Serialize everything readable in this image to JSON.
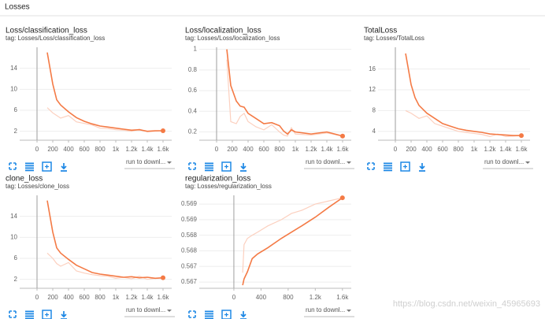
{
  "header": "Losses",
  "dropdown": "run to downl...",
  "watermark": "https://blog.csdn.net/weixin_45965693",
  "chart_data": [
    {
      "type": "line",
      "title": "Loss/classification_loss",
      "subtitle": "tag: Losses/Loss/classification_loss",
      "x": [
        130,
        200,
        250,
        300,
        400,
        500,
        600,
        700,
        800,
        900,
        1000,
        1100,
        1200,
        1300,
        1400,
        1500,
        1600
      ],
      "series": [
        {
          "color": "#fcd0bf",
          "values": [
            6.5,
            5.5,
            5,
            4.5,
            5,
            3.8,
            3.5,
            3.2,
            2.6,
            2.5,
            2.3,
            2.2,
            2.0,
            2.4,
            1.9,
            2.0,
            2.1
          ]
        },
        {
          "color": "#f47a45",
          "values": [
            17,
            11,
            8,
            7,
            5.7,
            4.6,
            3.9,
            3.4,
            3.0,
            2.8,
            2.6,
            2.4,
            2.2,
            2.3,
            2.0,
            2.1,
            2.1
          ]
        }
      ],
      "xlim": [
        -220,
        1710
      ],
      "ylim": [
        0.3,
        18
      ],
      "xticks": [
        0,
        200,
        400,
        600,
        800,
        {
          "value": 1000,
          "label": "1k"
        },
        {
          "value": 1200,
          "label": "1.2k"
        },
        {
          "value": 1400,
          "label": "1.4k"
        },
        {
          "value": 1600,
          "label": "1.6k"
        }
      ],
      "yticks": [
        2,
        6,
        10,
        14
      ],
      "grid": true
    },
    {
      "type": "line",
      "title": "Loss/localization_loss",
      "subtitle": "tag: Losses/Loss/localization_loss",
      "x": [
        130,
        180,
        250,
        300,
        350,
        400,
        500,
        600,
        700,
        800,
        850,
        900,
        950,
        1000,
        1200,
        1400,
        1600
      ],
      "series": [
        {
          "color": "#fcd0bf",
          "values": [
            0.9,
            0.3,
            0.28,
            0.35,
            0.38,
            0.3,
            0.25,
            0.22,
            0.27,
            0.2,
            0.17,
            0.16,
            0.24,
            0.18,
            0.17,
            0.19,
            0.16
          ]
        },
        {
          "color": "#f47a45",
          "values": [
            1.0,
            0.65,
            0.5,
            0.45,
            0.44,
            0.38,
            0.33,
            0.28,
            0.29,
            0.26,
            0.21,
            0.18,
            0.22,
            0.2,
            0.18,
            0.2,
            0.16
          ]
        }
      ],
      "xlim": [
        -220,
        1710
      ],
      "ylim": [
        0.12,
        1.02
      ],
      "xticks": [
        0,
        200,
        400,
        600,
        800,
        {
          "value": 1000,
          "label": "1k"
        },
        {
          "value": 1200,
          "label": "1.2k"
        },
        {
          "value": 1400,
          "label": "1.4k"
        },
        {
          "value": 1600,
          "label": "1.6k"
        }
      ],
      "yticks": [
        0.2,
        0.4,
        0.6,
        0.8,
        1
      ],
      "grid": true
    },
    {
      "type": "line",
      "title": "TotalLoss",
      "subtitle": "tag: Losses/TotalLoss",
      "x": [
        130,
        200,
        250,
        300,
        400,
        500,
        600,
        700,
        800,
        900,
        1000,
        1100,
        1200,
        1300,
        1400,
        1500,
        1600
      ],
      "series": [
        {
          "color": "#fcd0bf",
          "values": [
            8,
            7.5,
            7,
            6.5,
            7,
            5.5,
            5,
            4.5,
            4,
            3.8,
            3.6,
            3.4,
            3.0,
            3.5,
            3.0,
            3.1,
            3.2
          ]
        },
        {
          "color": "#f47a45",
          "values": [
            19,
            13,
            10.5,
            9,
            7.5,
            6.5,
            5.5,
            5,
            4.5,
            4.2,
            4,
            3.8,
            3.5,
            3.4,
            3.3,
            3.2,
            3.2
          ]
        }
      ],
      "xlim": [
        -220,
        1710
      ],
      "ylim": [
        2.3,
        20.2
      ],
      "xticks": [
        0,
        200,
        400,
        600,
        800,
        {
          "value": 1000,
          "label": "1k"
        },
        {
          "value": 1200,
          "label": "1.2k"
        },
        {
          "value": 1400,
          "label": "1.4k"
        },
        {
          "value": 1600,
          "label": "1.6k"
        }
      ],
      "yticks": [
        4,
        8,
        12,
        16
      ],
      "grid": true
    },
    {
      "type": "line",
      "title": "clone_loss",
      "subtitle": "tag: Losses/clone_loss",
      "x": [
        130,
        200,
        250,
        300,
        400,
        500,
        600,
        700,
        800,
        900,
        1000,
        1100,
        1200,
        1300,
        1400,
        1500,
        1600
      ],
      "series": [
        {
          "color": "#fcd0bf",
          "values": [
            7,
            6,
            5,
            4.5,
            5.2,
            3.6,
            3.2,
            2.9,
            2.7,
            2.6,
            2.2,
            2.4,
            2.1,
            2.6,
            2.0,
            2.2,
            2.3
          ]
        },
        {
          "color": "#f47a45",
          "values": [
            17,
            11,
            8,
            7,
            5.8,
            4.7,
            4.0,
            3.3,
            3.0,
            2.8,
            2.6,
            2.4,
            2.5,
            2.3,
            2.4,
            2.2,
            2.3
          ]
        }
      ],
      "xlim": [
        -220,
        1710
      ],
      "ylim": [
        0.3,
        18
      ],
      "xticks": [
        0,
        200,
        400,
        600,
        800,
        {
          "value": 1000,
          "label": "1k"
        },
        {
          "value": 1200,
          "label": "1.2k"
        },
        {
          "value": 1400,
          "label": "1.4k"
        },
        {
          "value": 1600,
          "label": "1.6k"
        }
      ],
      "yticks": [
        2,
        6,
        10,
        14
      ],
      "grid": true
    },
    {
      "type": "line",
      "title": "regularization_loss",
      "subtitle": "tag: Losses/regularization_loss",
      "x": [
        130,
        150,
        200,
        270,
        350,
        500,
        700,
        850,
        1000,
        1200,
        1400,
        1600
      ],
      "series": [
        {
          "color": "#fcd0bf",
          "values": [
            0.5668,
            0.5677,
            0.5679,
            0.568,
            0.5681,
            0.5683,
            0.5685,
            0.5687,
            0.5688,
            0.569,
            0.5691,
            0.5692
          ]
        },
        {
          "color": "#f47a45",
          "values": [
            0.5664,
            0.5666,
            0.56683,
            0.56725,
            0.5674,
            0.5676,
            0.5679,
            0.5681,
            0.5683,
            0.56858,
            0.5689,
            0.5692
          ]
        }
      ],
      "xlim": [
        -510,
        1730
      ],
      "ylim": [
        0.5663,
        0.56928
      ],
      "xticks": [
        0,
        400,
        800,
        {
          "value": 1200,
          "label": "1.2k"
        },
        {
          "value": 1600,
          "label": "1.6k"
        }
      ],
      "yticks": [
        {
          "value": 0.5665,
          "label": "0.567"
        },
        {
          "value": 0.567,
          "label": "0.567"
        },
        {
          "value": 0.5675,
          "label": "0.568"
        },
        {
          "value": 0.568,
          "label": "0.568"
        },
        {
          "value": 0.5685,
          "label": "0.569"
        },
        {
          "value": 0.569,
          "label": "0.569"
        }
      ],
      "grid": true
    }
  ]
}
